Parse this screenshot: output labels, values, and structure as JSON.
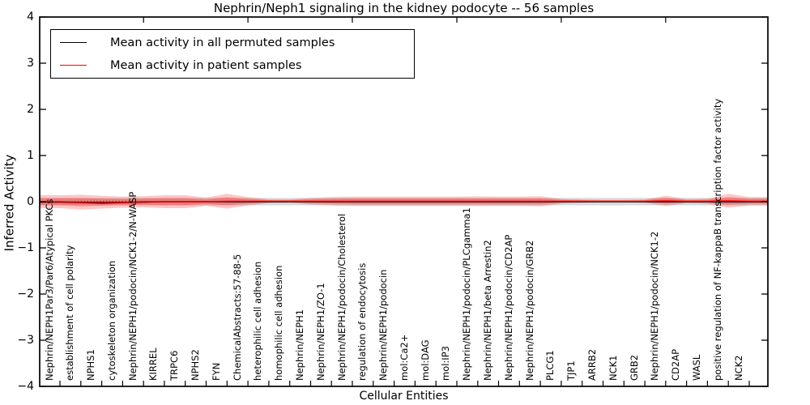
{
  "title": "Nephrin/Neph1 signaling in the kidney podocyte -- 56 samples",
  "axes": {
    "ylabel": "Inferred Activity",
    "xlabel": "Cellular Entities",
    "yticks": [
      "4",
      "3",
      "2",
      "1",
      "0",
      "−1",
      "−2",
      "−3",
      "−4"
    ],
    "ylim": [
      -4,
      4
    ]
  },
  "legend": {
    "items": [
      {
        "label": "Mean activity in all permuted samples",
        "color": "#000000"
      },
      {
        "label": "Mean activity in patient samples",
        "color": "#ff0000"
      }
    ]
  },
  "colors": {
    "patient_line": "#ff0000",
    "patient_band": "rgba(255,0,0,0.22)",
    "patient_band_inner": "rgba(255,0,0,0.26)",
    "permuted_line": "#000000",
    "permuted_band": "rgba(150,150,150,0.35)",
    "zero_line": "#000000",
    "axis": "#000000"
  },
  "chart_data": {
    "type": "line",
    "title": "Nephrin/Neph1 signaling in the kidney podocyte -- 56 samples",
    "xlabel": "Cellular Entities",
    "ylabel": "Inferred Activity",
    "ylim": [
      -4,
      4
    ],
    "grid": false,
    "legend_position": "upper left",
    "entities": [
      "Nephrin/NEPH1Par3/Par6/Atypical PKCs",
      "establishment of cell polarity",
      "NPHS1",
      "cytoskeleton organization",
      "Nephrin/NEPH1/podocin/NCK1-2/N-WASP",
      "KIRREL",
      "TRPC6",
      "NPHS2",
      "FYN",
      "ChemicalAbstracts:57-88-5",
      "heterophilic cell adhesion",
      "homophilic cell adhesion",
      "Nephrin/NEPH1",
      "Nephrin/NEPH1/ZO-1",
      "Nephrin/NEPH1/podocin/Cholesterol",
      "regulation of endocytosis",
      "Nephrin/NEPH1/podocin",
      "mol:Ca2+",
      "mol:DAG",
      "mol:IP3",
      "Nephrin/NEPH1/podocin/PLCgamma1",
      "Nephrin/NEPH1/beta Arrestin2",
      "Nephrin/NEPH1/podocin/CD2AP",
      "Nephrin/NEPH1/podocin/GRB2",
      "PLCG1",
      "TJP1",
      "ARRB2",
      "NCK1",
      "GRB2",
      "Nephrin/NEPH1/podocin/NCK1-2",
      "CD2AP",
      "WASL",
      "positive regulation of NF-kappaB transcription factor activity",
      "NCK2"
    ],
    "series": [
      {
        "name": "Mean activity in all permuted samples",
        "color": "#000000",
        "values": [
          -0.01,
          -0.02,
          -0.03,
          -0.02,
          -0.01,
          0,
          0,
          0,
          0,
          0,
          0,
          0,
          0,
          0,
          0,
          0,
          0,
          0,
          0,
          0,
          0,
          0,
          0,
          0,
          0,
          0,
          0,
          0,
          0,
          0,
          0,
          0,
          0,
          0
        ]
      },
      {
        "name": "Mean activity in patient samples",
        "color": "#ff0000",
        "values": [
          0,
          -0.01,
          -0.01,
          -0.01,
          0,
          0,
          0,
          0,
          0.01,
          0.01,
          0.01,
          0.01,
          0.01,
          0.01,
          0.01,
          0.01,
          0.01,
          0.01,
          0.01,
          0.01,
          0.01,
          0.01,
          0.01,
          0.01,
          0.01,
          0.01,
          0.01,
          0.01,
          0.01,
          0.02,
          0.01,
          0.01,
          0.02,
          0.01
        ]
      }
    ],
    "patient_band_halfwidth": [
      0.14,
      0.16,
      0.14,
      0.12,
      0.12,
      0.14,
      0.14,
      0.09,
      0.16,
      0.09,
      0.04,
      0.035,
      0.07,
      0.09,
      0.1,
      0.1,
      0.1,
      0.1,
      0.1,
      0.1,
      0.105,
      0.1,
      0.1,
      0.11,
      0.05,
      0.035,
      0.026,
      0.026,
      0.035,
      0.11,
      0.044,
      0.053,
      0.15,
      0.09
    ],
    "permuted_band_halfwidth": 0.08,
    "zero_line": 0,
    "top_tick_every": 5
  }
}
